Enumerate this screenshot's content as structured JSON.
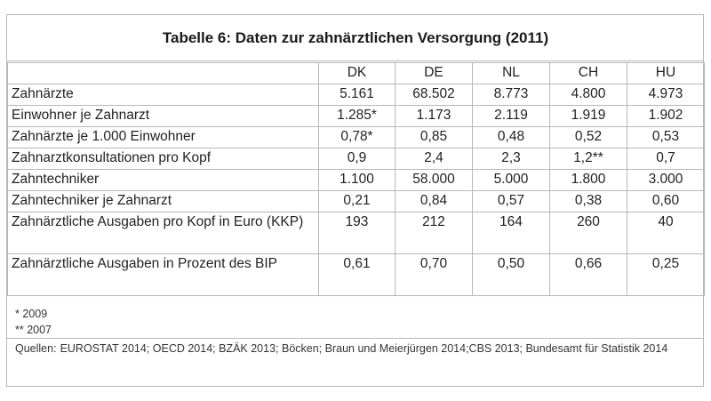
{
  "title": "Tabelle 6: Daten zur zahnärztlichen Versorgung (2011)",
  "columns": [
    "DK",
    "DE",
    "NL",
    "CH",
    "HU"
  ],
  "rows": [
    {
      "label": "Zahnärzte",
      "values": [
        "5.161",
        "68.502",
        "8.773",
        "4.800",
        "4.973"
      ]
    },
    {
      "label": "Einwohner je Zahnarzt",
      "values": [
        "1.285*",
        "1.173",
        "2.119",
        "1.919",
        "1.902"
      ]
    },
    {
      "label": "Zahnärzte je 1.000 Einwohner",
      "values": [
        "0,78*",
        "0,85",
        "0,48",
        "0,52",
        "0,53"
      ]
    },
    {
      "label": "Zahnarztkonsultationen pro Kopf",
      "values": [
        "0,9",
        "2,4",
        "2,3",
        "1,2**",
        "0,7"
      ]
    },
    {
      "label": "Zahntechniker",
      "values": [
        "1.100",
        "58.000",
        "5.000",
        "1.800",
        "3.000"
      ]
    },
    {
      "label": "Zahntechniker je Zahnarzt",
      "values": [
        "0,21",
        "0,84",
        "0,57",
        "0,38",
        "0,60"
      ]
    },
    {
      "label": "Zahnärztliche Ausgaben pro Kopf in Euro (KKP)",
      "values": [
        "193",
        "212",
        "164",
        "260",
        "40"
      ]
    },
    {
      "label": "Zahnärztliche Ausgaben in Prozent des BIP",
      "values": [
        "0,61",
        "0,70",
        "0,50",
        "0,66",
        "0,25"
      ]
    }
  ],
  "footnotes": [
    "*  2009",
    "** 2007"
  ],
  "sources_label": "Quellen:",
  "sources_text": "EUROSTAT 2014; OECD 2014; BZÄK 2013; Böcken; Braun und Meierjürgen 2014;CBS 2013; Bundesamt für Statistik 2014"
}
